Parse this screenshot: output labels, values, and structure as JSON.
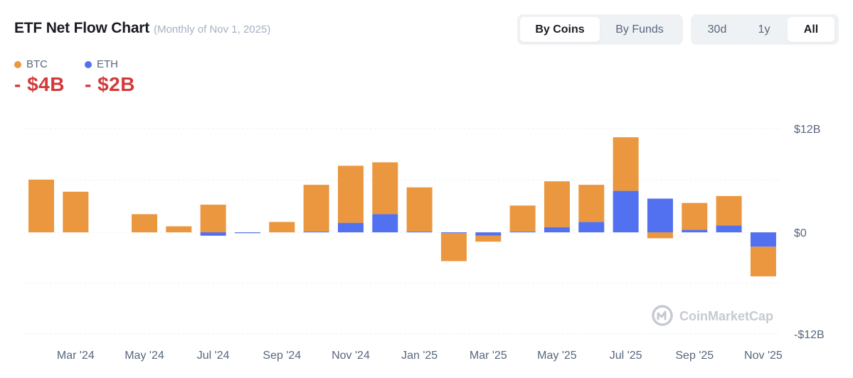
{
  "header": {
    "title": "ETF Net Flow Chart",
    "subtitle": "(Monthly of Nov 1, 2025)"
  },
  "toggles": {
    "coins": {
      "options": [
        "By Coins",
        "By Funds"
      ],
      "selected": "By Coins"
    },
    "range": {
      "options": [
        "30d",
        "1y",
        "All"
      ],
      "selected": "All"
    }
  },
  "legend": {
    "btc": {
      "label": "BTC",
      "value": "- $4B",
      "color": "#ea973f"
    },
    "eth": {
      "label": "ETH",
      "value": "- $2B",
      "color": "#5271f0"
    }
  },
  "watermark": {
    "text": "CoinMarketCap",
    "icon": "coinmarketcap-logo-icon"
  },
  "chart_data": {
    "type": "bar",
    "stacked": true,
    "title": "ETF Net Flow Chart",
    "units": "USD billions",
    "ylim": [
      -12,
      12
    ],
    "yticks": [
      {
        "value": 12,
        "label": "$12B"
      },
      {
        "value": 0,
        "label": "$0"
      },
      {
        "value": -12,
        "label": "-$12B"
      }
    ],
    "x_tick_labels": [
      {
        "index": 1,
        "label": "Mar '24"
      },
      {
        "index": 3,
        "label": "May '24"
      },
      {
        "index": 5,
        "label": "Jul '24"
      },
      {
        "index": 7,
        "label": "Sep '24"
      },
      {
        "index": 9,
        "label": "Nov '24"
      },
      {
        "index": 11,
        "label": "Jan '25"
      },
      {
        "index": 13,
        "label": "Mar '25"
      },
      {
        "index": 15,
        "label": "May '25"
      },
      {
        "index": 17,
        "label": "Jul '25"
      },
      {
        "index": 19,
        "label": "Sep '25"
      },
      {
        "index": 21,
        "label": "Nov '25"
      }
    ],
    "categories": [
      "Feb '24",
      "Mar '24",
      "Apr '24",
      "May '24",
      "Jun '24",
      "Jul '24",
      "Aug '24",
      "Sep '24",
      "Oct '24",
      "Nov '24",
      "Dec '24",
      "Jan '25",
      "Feb '25",
      "Mar '25",
      "Apr '25",
      "May '25",
      "Jun '25",
      "Jul '25",
      "Aug '25",
      "Sep '25",
      "Oct '25",
      "Nov '25"
    ],
    "series": [
      {
        "name": "ETH",
        "color": "#5271f0",
        "values": [
          0,
          0,
          0,
          0,
          0,
          -0.4,
          -0.1,
          0,
          0.1,
          1.1,
          2.1,
          0.1,
          -0.1,
          -0.4,
          0.1,
          0.6,
          1.2,
          4.8,
          3.9,
          0.3,
          0.8,
          -1.7
        ]
      },
      {
        "name": "BTC",
        "color": "#ea973f",
        "values": [
          6.1,
          4.7,
          0,
          2.1,
          0.7,
          3.2,
          0,
          1.2,
          5.4,
          6.6,
          6.0,
          5.1,
          -3.3,
          -0.7,
          3.0,
          5.3,
          4.3,
          6.2,
          -0.7,
          3.1,
          3.4,
          -3.5
        ]
      }
    ]
  }
}
